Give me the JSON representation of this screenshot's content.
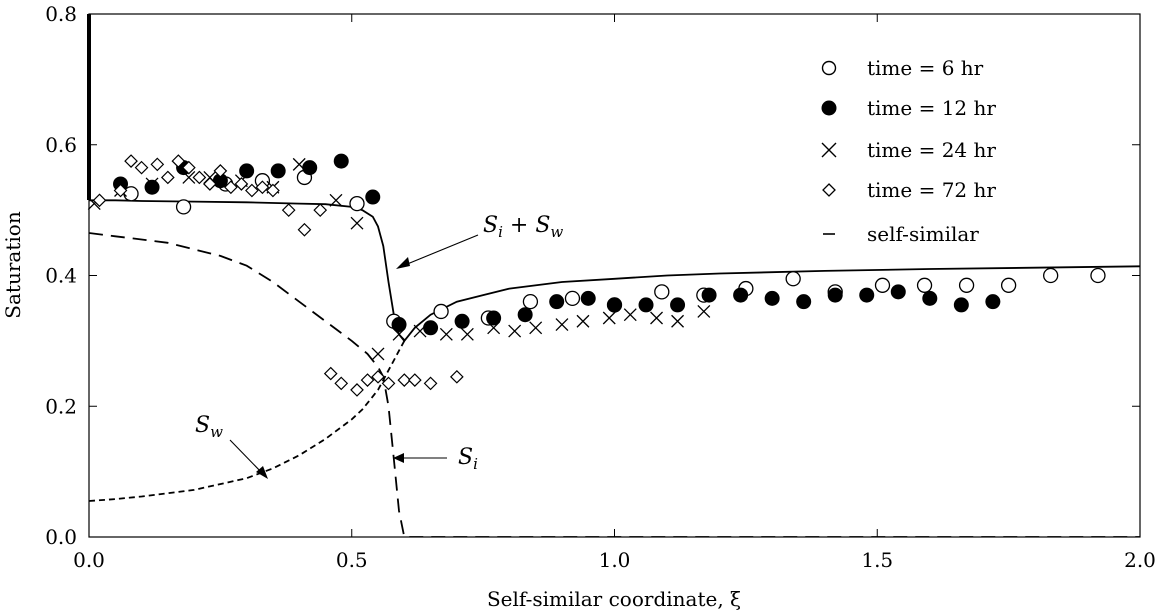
{
  "chart_data": {
    "type": "scatter",
    "xlabel": "Self-similar coordinate, ξ",
    "ylabel": "Saturation",
    "xlim": [
      0.0,
      2.0
    ],
    "ylim": [
      0.0,
      0.8
    ],
    "x_ticks": [
      "0.0",
      "0.5",
      "1.0",
      "1.5",
      "2.0"
    ],
    "y_ticks": [
      "0.0",
      "0.2",
      "0.4",
      "0.6",
      "0.8"
    ],
    "grid": false,
    "legend_position": "top-right",
    "series": [
      {
        "name": "time = 6 hr",
        "marker": "open-circle",
        "x": [
          0.08,
          0.18,
          0.26,
          0.33,
          0.41,
          0.51,
          0.58,
          0.67,
          0.76,
          0.84,
          0.92,
          1.0,
          1.09,
          1.17,
          1.25,
          1.34,
          1.42,
          1.51,
          1.59,
          1.67,
          1.75,
          1.83,
          1.92
        ],
        "y": [
          0.525,
          0.505,
          0.54,
          0.545,
          0.55,
          0.51,
          0.33,
          0.345,
          0.335,
          0.36,
          0.365,
          0.355,
          0.375,
          0.37,
          0.38,
          0.395,
          0.375,
          0.385,
          0.385,
          0.385,
          0.385,
          0.4,
          0.4
        ]
      },
      {
        "name": "time = 12 hr",
        "marker": "filled-circle",
        "x": [
          0.06,
          0.12,
          0.18,
          0.25,
          0.3,
          0.36,
          0.42,
          0.48,
          0.54,
          0.59,
          0.65,
          0.71,
          0.77,
          0.83,
          0.89,
          0.95,
          1.0,
          1.06,
          1.12,
          1.18,
          1.24,
          1.3,
          1.36,
          1.42,
          1.48,
          1.54,
          1.6,
          1.66,
          1.72
        ],
        "y": [
          0.54,
          0.535,
          0.565,
          0.545,
          0.56,
          0.56,
          0.565,
          0.575,
          0.52,
          0.325,
          0.32,
          0.33,
          0.335,
          0.34,
          0.36,
          0.365,
          0.355,
          0.355,
          0.355,
          0.37,
          0.37,
          0.365,
          0.36,
          0.37,
          0.37,
          0.375,
          0.365,
          0.355,
          0.36
        ]
      },
      {
        "name": "time = 24 hr",
        "marker": "cross",
        "x": [
          0.01,
          0.06,
          0.12,
          0.19,
          0.23,
          0.29,
          0.35,
          0.4,
          0.47,
          0.51,
          0.55,
          0.59,
          0.63,
          0.68,
          0.72,
          0.77,
          0.81,
          0.85,
          0.9,
          0.94,
          0.99,
          1.03,
          1.08,
          1.12,
          1.17
        ],
        "y": [
          0.51,
          0.53,
          0.54,
          0.55,
          0.55,
          0.545,
          0.535,
          0.57,
          0.515,
          0.48,
          0.28,
          0.31,
          0.315,
          0.31,
          0.31,
          0.32,
          0.315,
          0.32,
          0.325,
          0.33,
          0.335,
          0.34,
          0.335,
          0.33,
          0.345
        ]
      },
      {
        "name": "time = 72 hr",
        "marker": "open-diamond",
        "x": [
          0.02,
          0.06,
          0.08,
          0.1,
          0.13,
          0.15,
          0.17,
          0.19,
          0.21,
          0.23,
          0.25,
          0.27,
          0.29,
          0.31,
          0.33,
          0.35,
          0.38,
          0.41,
          0.44,
          0.46,
          0.48,
          0.51,
          0.53,
          0.55,
          0.57,
          0.6,
          0.62,
          0.65,
          0.7
        ],
        "y": [
          0.515,
          0.53,
          0.575,
          0.565,
          0.57,
          0.55,
          0.575,
          0.565,
          0.55,
          0.54,
          0.56,
          0.535,
          0.54,
          0.53,
          0.535,
          0.53,
          0.5,
          0.47,
          0.5,
          0.25,
          0.235,
          0.225,
          0.24,
          0.245,
          0.235,
          0.24,
          0.24,
          0.235,
          0.245
        ]
      },
      {
        "name": "self-similar",
        "marker": "line",
        "curves": [
          {
            "label": "S_i + S_w",
            "style": "solid",
            "x": [
              0.0,
              0.05,
              0.1,
              0.2,
              0.3,
              0.4,
              0.45,
              0.5,
              0.52,
              0.54,
              0.55,
              0.56,
              0.57,
              0.58,
              0.59,
              0.6,
              0.62,
              0.65,
              0.7,
              0.75,
              0.8,
              0.9,
              1.0,
              1.1,
              1.2,
              1.4,
              1.6,
              1.8,
              2.0
            ],
            "y": [
              0.515,
              0.515,
              0.514,
              0.513,
              0.512,
              0.51,
              0.509,
              0.505,
              0.5,
              0.49,
              0.475,
              0.445,
              0.39,
              0.34,
              0.31,
              0.3,
              0.32,
              0.34,
              0.36,
              0.37,
              0.38,
              0.39,
              0.395,
              0.4,
              0.403,
              0.407,
              0.41,
              0.412,
              0.414
            ]
          },
          {
            "label": "S_w",
            "style": "dashed",
            "x": [
              0.0,
              0.05,
              0.1,
              0.2,
              0.3,
              0.35,
              0.4,
              0.45,
              0.5,
              0.52,
              0.54,
              0.55,
              0.56,
              0.57,
              0.58,
              0.59,
              0.6
            ],
            "y": [
              0.055,
              0.058,
              0.062,
              0.072,
              0.09,
              0.105,
              0.125,
              0.15,
              0.18,
              0.195,
              0.215,
              0.225,
              0.24,
              0.255,
              0.27,
              0.285,
              0.3
            ]
          },
          {
            "label": "S_i",
            "style": "long-dashed",
            "x": [
              0.0,
              0.05,
              0.1,
              0.15,
              0.2,
              0.25,
              0.3,
              0.35,
              0.4,
              0.45,
              0.5,
              0.53,
              0.55,
              0.56,
              0.57,
              0.58,
              0.59,
              0.6,
              0.7,
              0.8,
              1.0,
              1.5,
              2.0
            ],
            "y": [
              0.465,
              0.46,
              0.455,
              0.45,
              0.44,
              0.43,
              0.415,
              0.39,
              0.36,
              0.33,
              0.3,
              0.28,
              0.26,
              0.245,
              0.2,
              0.12,
              0.04,
              0.0,
              0.0,
              0.0,
              0.0,
              0.0,
              0.0
            ]
          }
        ]
      }
    ],
    "annotations": [
      {
        "base": "S",
        "sub": "i",
        "joiner": " + ",
        "base2": "S",
        "sub2": "w"
      },
      {
        "base": "S",
        "sub": "w"
      },
      {
        "base": "S",
        "sub": "i"
      }
    ]
  }
}
